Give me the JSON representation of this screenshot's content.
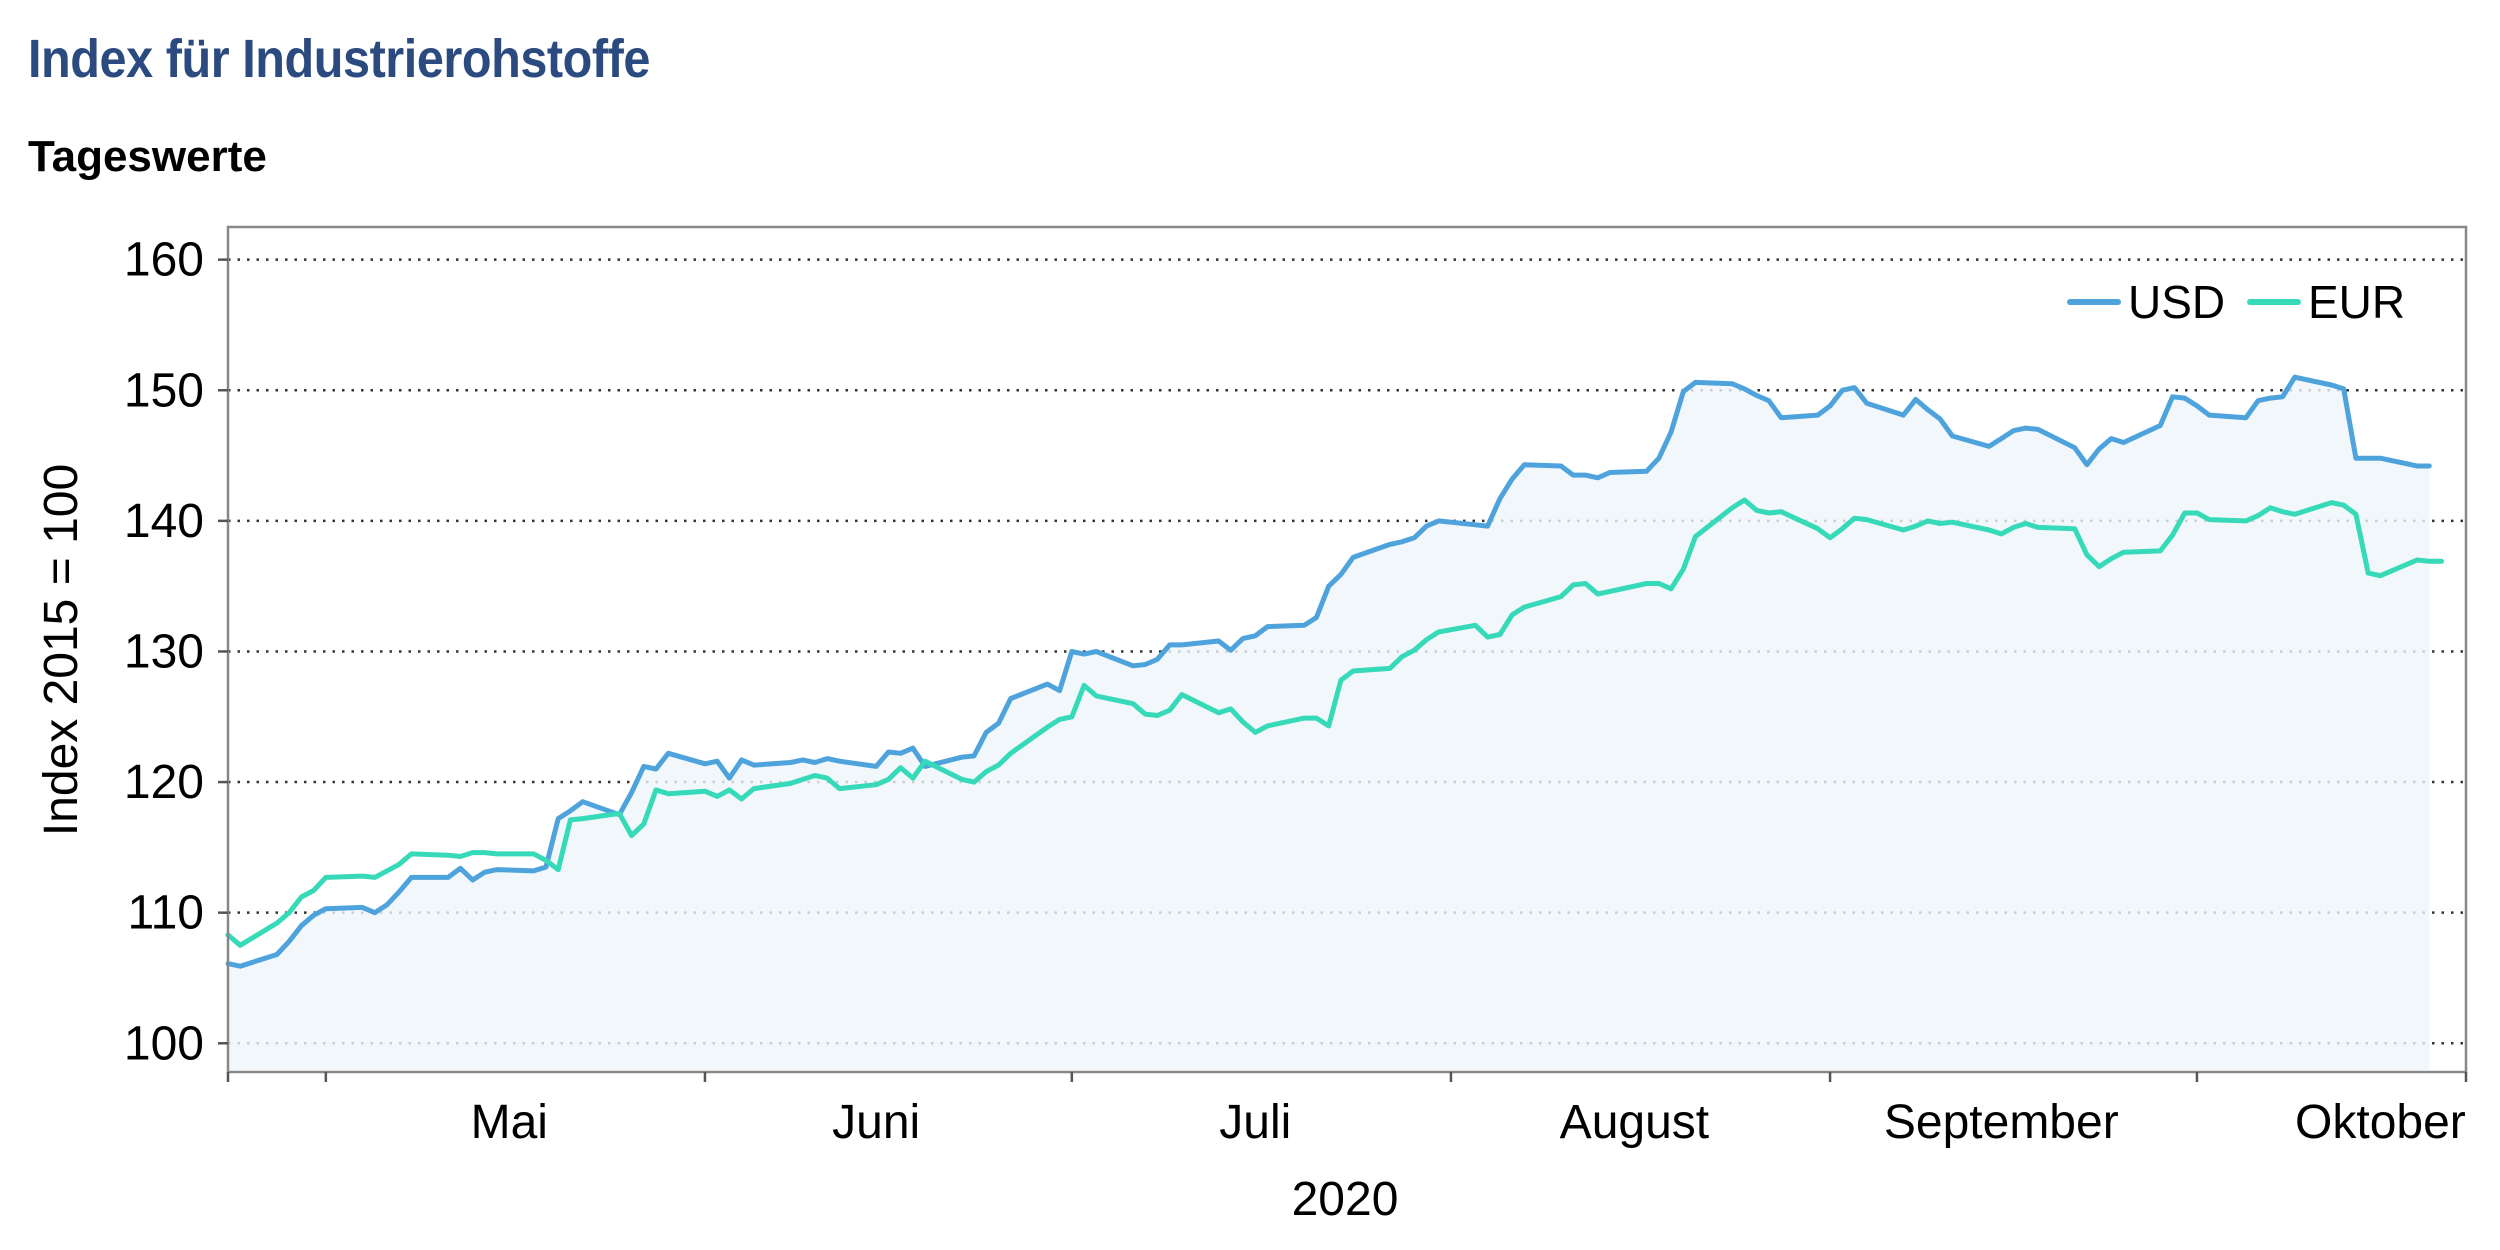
{
  "title": "Index für Industrierohstoffe",
  "subtitle": "Tageswerte",
  "colors": {
    "usd": "#4fa3dc",
    "eur": "#36d9b8",
    "fill": "#eef5fa",
    "title": "#2b4a7f"
  },
  "chart_data": {
    "type": "line",
    "ylabel": "Index 2015 = 100",
    "xlabel": "2020",
    "ylim": [
      97.8,
      162.5
    ],
    "yticks": [
      100,
      110,
      120,
      130,
      140,
      150,
      160
    ],
    "grid": "horizontal-dotted",
    "legend": {
      "position": "top-right",
      "entries": [
        "USD",
        "EUR"
      ]
    },
    "x_start": "2020-04-23",
    "x_end": "2020-10-23",
    "month_boundaries": [
      "2020-05-01",
      "2020-06-01",
      "2020-07-01",
      "2020-08-01",
      "2020-09-01",
      "2020-10-01"
    ],
    "month_labels": [
      {
        "label": "Mai",
        "date": "2020-05-16"
      },
      {
        "label": "Juni",
        "date": "2020-06-15"
      },
      {
        "label": "Juli",
        "date": "2020-07-16"
      },
      {
        "label": "August",
        "date": "2020-08-16"
      },
      {
        "label": "September",
        "date": "2020-09-15"
      },
      {
        "label": "Oktober",
        "date": "2020-10-16"
      }
    ],
    "series": [
      {
        "name": "USD",
        "points": [
          [
            "2020-04-23",
            106.1
          ],
          [
            "2020-04-24",
            105.9
          ],
          [
            "2020-04-27",
            106.8
          ],
          [
            "2020-04-28",
            107.8
          ],
          [
            "2020-04-29",
            109.0
          ],
          [
            "2020-04-30",
            109.8
          ],
          [
            "2020-05-01",
            110.3
          ],
          [
            "2020-05-04",
            110.4
          ],
          [
            "2020-05-05",
            110.0
          ],
          [
            "2020-05-06",
            110.6
          ],
          [
            "2020-05-07",
            111.6
          ],
          [
            "2020-05-08",
            112.7
          ],
          [
            "2020-05-11",
            112.7
          ],
          [
            "2020-05-12",
            113.4
          ],
          [
            "2020-05-13",
            112.5
          ],
          [
            "2020-05-14",
            113.1
          ],
          [
            "2020-05-15",
            113.3
          ],
          [
            "2020-05-18",
            113.2
          ],
          [
            "2020-05-19",
            113.5
          ],
          [
            "2020-05-20",
            117.2
          ],
          [
            "2020-05-21",
            117.8
          ],
          [
            "2020-05-22",
            118.5
          ],
          [
            "2020-05-25",
            117.5
          ],
          [
            "2020-05-26",
            119.2
          ],
          [
            "2020-05-27",
            121.2
          ],
          [
            "2020-05-28",
            121.0
          ],
          [
            "2020-05-29",
            122.2
          ],
          [
            "2020-06-01",
            121.4
          ],
          [
            "2020-06-02",
            121.6
          ],
          [
            "2020-06-03",
            120.3
          ],
          [
            "2020-06-04",
            121.7
          ],
          [
            "2020-06-05",
            121.3
          ],
          [
            "2020-06-08",
            121.5
          ],
          [
            "2020-06-09",
            121.7
          ],
          [
            "2020-06-10",
            121.5
          ],
          [
            "2020-06-11",
            121.8
          ],
          [
            "2020-06-12",
            121.6
          ],
          [
            "2020-06-15",
            121.2
          ],
          [
            "2020-06-16",
            122.3
          ],
          [
            "2020-06-17",
            122.2
          ],
          [
            "2020-06-18",
            122.6
          ],
          [
            "2020-06-19",
            121.2
          ],
          [
            "2020-06-22",
            121.9
          ],
          [
            "2020-06-23",
            122.0
          ],
          [
            "2020-06-24",
            123.8
          ],
          [
            "2020-06-25",
            124.5
          ],
          [
            "2020-06-26",
            126.4
          ],
          [
            "2020-06-29",
            127.5
          ],
          [
            "2020-06-30",
            127.0
          ],
          [
            "2020-07-01",
            130.0
          ],
          [
            "2020-07-02",
            129.8
          ],
          [
            "2020-07-03",
            130.0
          ],
          [
            "2020-07-06",
            128.9
          ],
          [
            "2020-07-07",
            129.0
          ],
          [
            "2020-07-08",
            129.4
          ],
          [
            "2020-07-09",
            130.5
          ],
          [
            "2020-07-10",
            130.5
          ],
          [
            "2020-07-13",
            130.8
          ],
          [
            "2020-07-14",
            130.1
          ],
          [
            "2020-07-15",
            131.0
          ],
          [
            "2020-07-16",
            131.2
          ],
          [
            "2020-07-17",
            131.9
          ],
          [
            "2020-07-20",
            132.0
          ],
          [
            "2020-07-21",
            132.6
          ],
          [
            "2020-07-22",
            135.0
          ],
          [
            "2020-07-23",
            135.9
          ],
          [
            "2020-07-24",
            137.2
          ],
          [
            "2020-07-27",
            138.2
          ],
          [
            "2020-07-28",
            138.4
          ],
          [
            "2020-07-29",
            138.7
          ],
          [
            "2020-07-30",
            139.6
          ],
          [
            "2020-07-31",
            140.0
          ],
          [
            "2020-08-03",
            139.7
          ],
          [
            "2020-08-04",
            139.6
          ],
          [
            "2020-08-05",
            141.7
          ],
          [
            "2020-08-06",
            143.2
          ],
          [
            "2020-08-07",
            144.3
          ],
          [
            "2020-08-10",
            144.2
          ],
          [
            "2020-08-11",
            143.5
          ],
          [
            "2020-08-12",
            143.5
          ],
          [
            "2020-08-13",
            143.3
          ],
          [
            "2020-08-14",
            143.7
          ],
          [
            "2020-08-17",
            143.8
          ],
          [
            "2020-08-18",
            144.8
          ],
          [
            "2020-08-19",
            146.8
          ],
          [
            "2020-08-20",
            149.9
          ],
          [
            "2020-08-21",
            150.6
          ],
          [
            "2020-08-24",
            150.5
          ],
          [
            "2020-08-25",
            150.1
          ],
          [
            "2020-08-26",
            149.6
          ],
          [
            "2020-08-27",
            149.2
          ],
          [
            "2020-08-28",
            147.9
          ],
          [
            "2020-08-31",
            148.1
          ],
          [
            "2020-09-01",
            148.8
          ],
          [
            "2020-09-02",
            150.0
          ],
          [
            "2020-09-03",
            150.2
          ],
          [
            "2020-09-04",
            149.0
          ],
          [
            "2020-09-07",
            148.1
          ],
          [
            "2020-09-08",
            149.3
          ],
          [
            "2020-09-09",
            148.5
          ],
          [
            "2020-09-10",
            147.8
          ],
          [
            "2020-09-11",
            146.5
          ],
          [
            "2020-09-14",
            145.7
          ],
          [
            "2020-09-15",
            146.3
          ],
          [
            "2020-09-16",
            146.9
          ],
          [
            "2020-09-17",
            147.1
          ],
          [
            "2020-09-18",
            147.0
          ],
          [
            "2020-09-21",
            145.6
          ],
          [
            "2020-09-22",
            144.3
          ],
          [
            "2020-09-23",
            145.5
          ],
          [
            "2020-09-24",
            146.3
          ],
          [
            "2020-09-25",
            146.0
          ],
          [
            "2020-09-28",
            147.3
          ],
          [
            "2020-09-29",
            149.5
          ],
          [
            "2020-09-30",
            149.4
          ],
          [
            "2020-10-01",
            148.8
          ],
          [
            "2020-10-02",
            148.1
          ],
          [
            "2020-10-05",
            147.9
          ],
          [
            "2020-10-06",
            149.2
          ],
          [
            "2020-10-07",
            149.4
          ],
          [
            "2020-10-08",
            149.5
          ],
          [
            "2020-10-09",
            151.0
          ],
          [
            "2020-10-12",
            150.4
          ],
          [
            "2020-10-13",
            150.1
          ],
          [
            "2020-10-14",
            144.8
          ],
          [
            "2020-10-15",
            144.8
          ],
          [
            "2020-10-16",
            144.8
          ],
          [
            "2020-10-19",
            144.2
          ],
          [
            "2020-10-20",
            144.2
          ]
        ]
      },
      {
        "name": "EUR",
        "points": [
          [
            "2020-04-23",
            108.3
          ],
          [
            "2020-04-24",
            107.5
          ],
          [
            "2020-04-27",
            109.2
          ],
          [
            "2020-04-28",
            110.0
          ],
          [
            "2020-04-29",
            111.2
          ],
          [
            "2020-04-30",
            111.7
          ],
          [
            "2020-05-01",
            112.7
          ],
          [
            "2020-05-04",
            112.8
          ],
          [
            "2020-05-05",
            112.7
          ],
          [
            "2020-05-06",
            113.2
          ],
          [
            "2020-05-07",
            113.7
          ],
          [
            "2020-05-08",
            114.5
          ],
          [
            "2020-05-11",
            114.4
          ],
          [
            "2020-05-12",
            114.3
          ],
          [
            "2020-05-13",
            114.6
          ],
          [
            "2020-05-14",
            114.6
          ],
          [
            "2020-05-15",
            114.5
          ],
          [
            "2020-05-18",
            114.5
          ],
          [
            "2020-05-19",
            114.0
          ],
          [
            "2020-05-20",
            113.3
          ],
          [
            "2020-05-21",
            117.1
          ],
          [
            "2020-05-22",
            117.2
          ],
          [
            "2020-05-25",
            117.6
          ],
          [
            "2020-05-26",
            115.9
          ],
          [
            "2020-05-27",
            116.8
          ],
          [
            "2020-05-28",
            119.4
          ],
          [
            "2020-05-29",
            119.1
          ],
          [
            "2020-06-01",
            119.3
          ],
          [
            "2020-06-02",
            118.9
          ],
          [
            "2020-06-03",
            119.4
          ],
          [
            "2020-06-04",
            118.7
          ],
          [
            "2020-06-05",
            119.5
          ],
          [
            "2020-06-08",
            119.9
          ],
          [
            "2020-06-09",
            120.2
          ],
          [
            "2020-06-10",
            120.5
          ],
          [
            "2020-06-11",
            120.3
          ],
          [
            "2020-06-12",
            119.5
          ],
          [
            "2020-06-15",
            119.8
          ],
          [
            "2020-06-16",
            120.2
          ],
          [
            "2020-06-17",
            121.1
          ],
          [
            "2020-06-18",
            120.3
          ],
          [
            "2020-06-19",
            121.6
          ],
          [
            "2020-06-22",
            120.2
          ],
          [
            "2020-06-23",
            120.0
          ],
          [
            "2020-06-24",
            120.8
          ],
          [
            "2020-06-25",
            121.3
          ],
          [
            "2020-06-26",
            122.2
          ],
          [
            "2020-06-29",
            124.2
          ],
          [
            "2020-06-30",
            124.8
          ],
          [
            "2020-07-01",
            125.0
          ],
          [
            "2020-07-02",
            127.4
          ],
          [
            "2020-07-03",
            126.6
          ],
          [
            "2020-07-06",
            126.0
          ],
          [
            "2020-07-07",
            125.2
          ],
          [
            "2020-07-08",
            125.1
          ],
          [
            "2020-07-09",
            125.5
          ],
          [
            "2020-07-10",
            126.7
          ],
          [
            "2020-07-13",
            125.3
          ],
          [
            "2020-07-14",
            125.6
          ],
          [
            "2020-07-15",
            124.6
          ],
          [
            "2020-07-16",
            123.8
          ],
          [
            "2020-07-17",
            124.3
          ],
          [
            "2020-07-20",
            124.9
          ],
          [
            "2020-07-21",
            124.9
          ],
          [
            "2020-07-22",
            124.3
          ],
          [
            "2020-07-23",
            127.8
          ],
          [
            "2020-07-24",
            128.5
          ],
          [
            "2020-07-27",
            128.7
          ],
          [
            "2020-07-28",
            129.6
          ],
          [
            "2020-07-29",
            130.1
          ],
          [
            "2020-07-30",
            130.9
          ],
          [
            "2020-07-31",
            131.5
          ],
          [
            "2020-08-03",
            132.0
          ],
          [
            "2020-08-04",
            131.1
          ],
          [
            "2020-08-05",
            131.3
          ],
          [
            "2020-08-06",
            132.8
          ],
          [
            "2020-08-07",
            133.4
          ],
          [
            "2020-08-10",
            134.2
          ],
          [
            "2020-08-11",
            135.1
          ],
          [
            "2020-08-12",
            135.2
          ],
          [
            "2020-08-13",
            134.4
          ],
          [
            "2020-08-14",
            134.6
          ],
          [
            "2020-08-17",
            135.2
          ],
          [
            "2020-08-18",
            135.2
          ],
          [
            "2020-08-19",
            134.8
          ],
          [
            "2020-08-20",
            136.3
          ],
          [
            "2020-08-21",
            138.8
          ],
          [
            "2020-08-24",
            141.0
          ],
          [
            "2020-08-25",
            141.6
          ],
          [
            "2020-08-26",
            140.8
          ],
          [
            "2020-08-27",
            140.6
          ],
          [
            "2020-08-28",
            140.7
          ],
          [
            "2020-08-31",
            139.4
          ],
          [
            "2020-09-01",
            138.7
          ],
          [
            "2020-09-02",
            139.4
          ],
          [
            "2020-09-03",
            140.2
          ],
          [
            "2020-09-04",
            140.1
          ],
          [
            "2020-09-07",
            139.3
          ],
          [
            "2020-09-08",
            139.6
          ],
          [
            "2020-09-09",
            140.0
          ],
          [
            "2020-09-10",
            139.8
          ],
          [
            "2020-09-11",
            139.9
          ],
          [
            "2020-09-14",
            139.3
          ],
          [
            "2020-09-15",
            139.0
          ],
          [
            "2020-09-16",
            139.5
          ],
          [
            "2020-09-17",
            139.8
          ],
          [
            "2020-09-18",
            139.5
          ],
          [
            "2020-09-21",
            139.4
          ],
          [
            "2020-09-22",
            137.4
          ],
          [
            "2020-09-23",
            136.5
          ],
          [
            "2020-09-24",
            137.1
          ],
          [
            "2020-09-25",
            137.6
          ],
          [
            "2020-09-28",
            137.7
          ],
          [
            "2020-09-29",
            138.9
          ],
          [
            "2020-09-30",
            140.6
          ],
          [
            "2020-10-01",
            140.6
          ],
          [
            "2020-10-02",
            140.1
          ],
          [
            "2020-10-05",
            140.0
          ],
          [
            "2020-10-06",
            140.4
          ],
          [
            "2020-10-07",
            141.0
          ],
          [
            "2020-10-08",
            140.7
          ],
          [
            "2020-10-09",
            140.5
          ],
          [
            "2020-10-12",
            141.4
          ],
          [
            "2020-10-13",
            141.2
          ],
          [
            "2020-10-14",
            140.5
          ],
          [
            "2020-10-15",
            136.0
          ],
          [
            "2020-10-16",
            135.8
          ],
          [
            "2020-10-19",
            137.0
          ],
          [
            "2020-10-20",
            136.9
          ],
          [
            "2020-10-21",
            136.9
          ]
        ]
      }
    ]
  }
}
